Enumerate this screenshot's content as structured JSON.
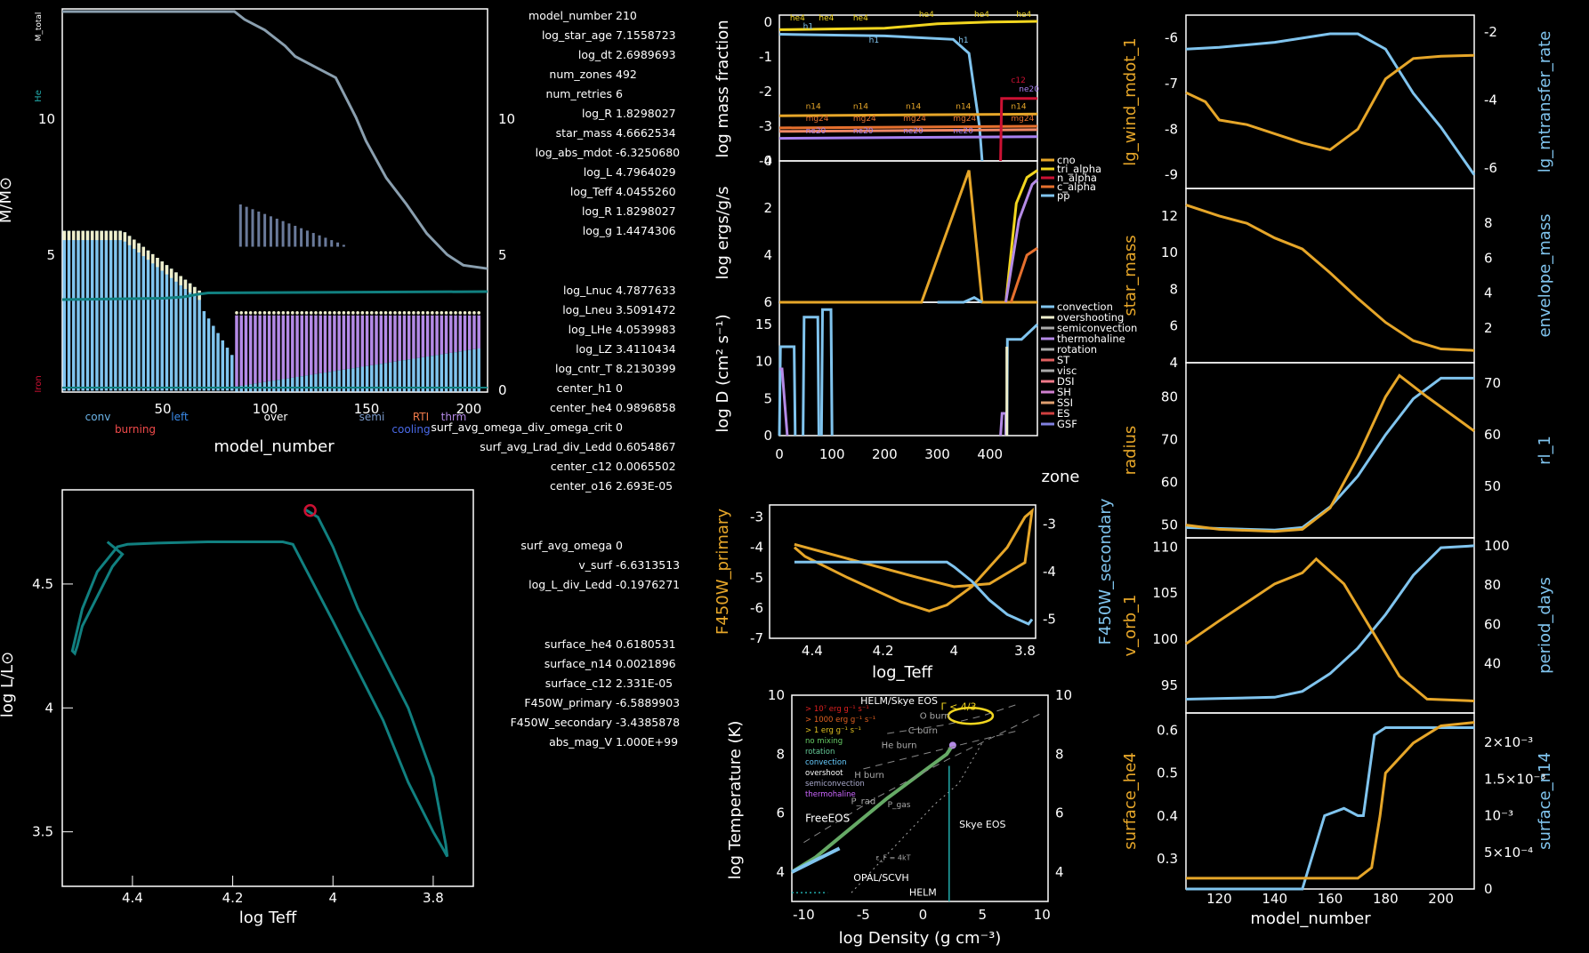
{
  "colors": {
    "background": "#000000",
    "teal": "#118080",
    "gold": "#e6a629",
    "yellow": "#f2d61f",
    "skyblue": "#80c4ee",
    "red": "#cc1133",
    "orange": "#e6702e",
    "lavender": "#b48ae6",
    "cream": "#eeeecc",
    "pink": "#f07a8a"
  },
  "info": [
    {
      "label": "model_number",
      "value": "210"
    },
    {
      "label": "log_star_age",
      "value": "7.1558723"
    },
    {
      "label": "log_dt",
      "value": "2.6989693"
    },
    {
      "label": "num_zones",
      "value": "492"
    },
    {
      "label": "num_retries",
      "value": "6"
    },
    {
      "label": "log_R",
      "value": "1.8298027"
    },
    {
      "label": "star_mass",
      "value": "4.6662534"
    },
    {
      "label": "log_abs_mdot",
      "value": "-6.3250680"
    },
    {
      "label": "log_L",
      "value": "4.7964029"
    },
    {
      "label": "log_Teff",
      "value": "4.0455260"
    },
    {
      "label": "log_R",
      "value": "1.8298027"
    },
    {
      "label": "log_g",
      "value": "1.4474306"
    },
    {
      "label": "log_Lnuc",
      "value": "4.7877633"
    },
    {
      "label": "log_Lneu",
      "value": "3.5091472"
    },
    {
      "label": "log_LHe",
      "value": "4.0539983"
    },
    {
      "label": "log_LZ",
      "value": "3.4110434"
    },
    {
      "label": "log_cntr_T",
      "value": "8.2130399"
    },
    {
      "label": "center_h1",
      "value": "0"
    },
    {
      "label": "center_he4",
      "value": "0.9896858"
    },
    {
      "label": "surf_avg_omega_div_omega_crit",
      "value": "0"
    },
    {
      "label": "surf_avg_Lrad_div_Ledd",
      "value": "0.6054867"
    },
    {
      "label": "center_c12",
      "value": "0.0065502"
    },
    {
      "label": "center_o16",
      "value": "2.693E-05"
    },
    {
      "label": "surf_avg_omega",
      "value": "0"
    },
    {
      "label": "v_surf",
      "value": "-6.6313513"
    },
    {
      "label": "log_L_div_Ledd",
      "value": "-0.1976271"
    },
    {
      "label": "surface_he4",
      "value": "0.6180531"
    },
    {
      "label": "surface_n14",
      "value": "0.0021896"
    },
    {
      "label": "surface_c12",
      "value": "2.331E-05"
    },
    {
      "label": "F450W_primary",
      "value": "-6.5889903"
    },
    {
      "label": "F450W_secondary",
      "value": "-3.4385878"
    },
    {
      "label": "abs_mag_V",
      "value": "1.000E+99"
    }
  ],
  "chart_data": [
    {
      "id": "kippenhahn",
      "type": "line",
      "xlabel": "model_number",
      "ylabel": "M/M⊙",
      "xlim": [
        0,
        210
      ],
      "ylim": [
        0,
        14.5
      ],
      "xticks": [
        "50",
        "100",
        "150",
        "200"
      ],
      "yticks_left": [
        "5",
        "10"
      ],
      "yticks_right": [
        "0",
        "5",
        "10"
      ],
      "side_labels": [
        "M_total",
        "He",
        "Iron"
      ],
      "legend_labels": [
        "conv",
        "burning",
        "left",
        "over",
        "semi",
        "RTI",
        "cooling",
        "thrm"
      ],
      "series": [
        {
          "name": "M_total",
          "x": [
            0,
            85,
            90,
            100,
            110,
            115,
            125,
            135,
            145,
            150,
            160,
            170,
            180,
            190,
            198,
            210
          ],
          "y": [
            14.4,
            14.4,
            14.1,
            13.7,
            13.1,
            12.7,
            12.3,
            11.9,
            10.4,
            9.5,
            8.1,
            7.1,
            6.0,
            5.2,
            4.8,
            4.67
          ]
        },
        {
          "name": "He",
          "x": [
            0,
            50,
            60,
            67,
            72,
            210
          ],
          "y": [
            3.5,
            3.55,
            3.6,
            3.7,
            3.75,
            3.8
          ]
        }
      ]
    },
    {
      "id": "hr",
      "type": "line",
      "xlabel": "log Teff",
      "ylabel": "log L/L⊙",
      "xlim": [
        4.54,
        3.72
      ],
      "ylim": [
        3.28,
        4.88
      ],
      "xticks": [
        "4.4",
        "4.2",
        "4",
        "3.8"
      ],
      "yticks": [
        "3.5",
        "4",
        "4.5"
      ],
      "series": [
        {
          "name": "track",
          "x": [
            4.055,
            4.03,
            4.0,
            3.95,
            3.9,
            3.85,
            3.8,
            3.775,
            3.772,
            3.78,
            3.8,
            3.85,
            3.9,
            4.0,
            4.08,
            4.1,
            4.15,
            4.25,
            4.35,
            4.41,
            4.43,
            4.47,
            4.5,
            4.52,
            4.515,
            4.51,
            4.5,
            4.47,
            4.44,
            4.42,
            4.45
          ],
          "y": [
            4.8,
            4.77,
            4.65,
            4.4,
            4.2,
            4.0,
            3.72,
            3.45,
            3.4,
            3.43,
            3.5,
            3.7,
            3.95,
            4.35,
            4.66,
            4.67,
            4.67,
            4.67,
            4.665,
            4.66,
            4.65,
            4.55,
            4.4,
            4.23,
            4.22,
            4.25,
            4.33,
            4.45,
            4.57,
            4.62,
            4.67
          ]
        }
      ],
      "current_point": {
        "x": 4.0455,
        "y": 4.7964
      }
    },
    {
      "id": "abundance",
      "type": "line",
      "ylabel": "log mass fraction",
      "xlim": [
        0,
        490
      ],
      "ylim": [
        -4,
        0.2
      ],
      "yticks": [
        "0",
        "-1",
        "-2",
        "-3",
        "-4"
      ],
      "series_labels": [
        "he4",
        "h1",
        "n14",
        "mg24",
        "ne20",
        "c12"
      ]
    },
    {
      "id": "power",
      "type": "line",
      "ylabel": "log ergs/g/s",
      "xlim": [
        0,
        490
      ],
      "ylim": [
        0,
        6
      ],
      "yticks": [
        "0",
        "2",
        "4",
        "6"
      ],
      "legend": [
        "cno",
        "tri_alpha",
        "n_alpha",
        "c_alpha",
        "pp"
      ]
    },
    {
      "id": "mixing",
      "type": "line",
      "xlabel": "zone",
      "ylabel": "log D (cm² s⁻¹)",
      "xlim": [
        0,
        490
      ],
      "ylim": [
        0,
        18
      ],
      "xticks": [
        "0",
        "100",
        "200",
        "300",
        "400"
      ],
      "yticks": [
        "0",
        "5",
        "10",
        "15"
      ],
      "legend": [
        "convection",
        "overshooting",
        "semiconvection",
        "thermohaline",
        "rotation",
        "ST",
        "visc",
        "DSI",
        "SH",
        "SSI",
        "ES",
        "GSF"
      ]
    },
    {
      "id": "mags",
      "type": "line",
      "xlabel": "log_Teff",
      "ylabel_left": "F450W_primary",
      "ylabel_right": "F450W_secondary",
      "xlim": [
        4.52,
        3.77
      ],
      "ylim": [
        -7,
        -2.6
      ],
      "xticks": [
        "4.4",
        "4.2",
        "4",
        "3.8"
      ],
      "yticks_left": [
        "-3",
        "-4",
        "-5",
        "-6",
        "-7"
      ],
      "yticks_right": [
        "-3",
        "-4",
        "-5"
      ]
    },
    {
      "id": "trho",
      "type": "line",
      "xlabel": "log Density (g cm⁻³)",
      "ylabel": "log Temperature (K)",
      "xlim": [
        -11,
        10.5
      ],
      "ylim": [
        3,
        10
      ],
      "xticks": [
        "-10",
        "-5",
        "0",
        "5",
        "10"
      ],
      "yticks": [
        "4",
        "6",
        "8",
        "10"
      ],
      "region_labels": [
        "HELM/Skye EOS",
        "FreeEOS",
        "OPAL/SCVH",
        "HELM",
        "Skye EOS",
        "O burn",
        "C burn",
        "He burn",
        "H burn",
        "Γ < 4/3",
        "P_rad",
        "P_gas",
        "ε_F = 4kT"
      ],
      "legend": [
        "> 10⁷ erg g⁻¹ s⁻¹",
        "> 1000 erg g⁻¹ s⁻¹",
        "> 1 erg g⁻¹ s⁻¹",
        "no mixing",
        "rotation",
        "convection",
        "overshoot",
        "semiconvection",
        "thermohaline"
      ]
    },
    {
      "id": "history_panels",
      "type": "line",
      "xlabel": "model_number",
      "xlim": [
        108,
        212
      ],
      "xticks": [
        "120",
        "140",
        "160",
        "180",
        "200"
      ],
      "panels": [
        {
          "left": "lg_wind_mdot_1",
          "right": "lg_mtransfer_rate",
          "left_ticks": [
            "-6",
            "-7",
            "-8",
            "-9"
          ],
          "right_ticks": [
            "-2",
            "-4",
            "-6"
          ]
        },
        {
          "left": "star_mass",
          "right": "envelope_mass",
          "left_ticks": [
            "12",
            "10",
            "8",
            "6",
            "4"
          ],
          "right_ticks": [
            "8",
            "6",
            "4",
            "2"
          ]
        },
        {
          "left": "radius",
          "right": "rl_1",
          "left_ticks": [
            "80",
            "70",
            "60",
            "50"
          ],
          "right_ticks": [
            "70",
            "60",
            "50"
          ]
        },
        {
          "left": "v_orb_1",
          "right": "period_days",
          "left_ticks": [
            "110",
            "105",
            "100",
            "95"
          ],
          "right_ticks": [
            "100",
            "80",
            "60",
            "40"
          ]
        },
        {
          "left": "surface_he4",
          "right": "surface_n14",
          "left_ticks": [
            "0.6",
            "0.5",
            "0.4",
            "0.3"
          ],
          "right_ticks": [
            "2×10⁻³",
            "1.5×10⁻³",
            "10⁻³",
            "5×10⁻⁴",
            "0"
          ]
        }
      ]
    }
  ]
}
